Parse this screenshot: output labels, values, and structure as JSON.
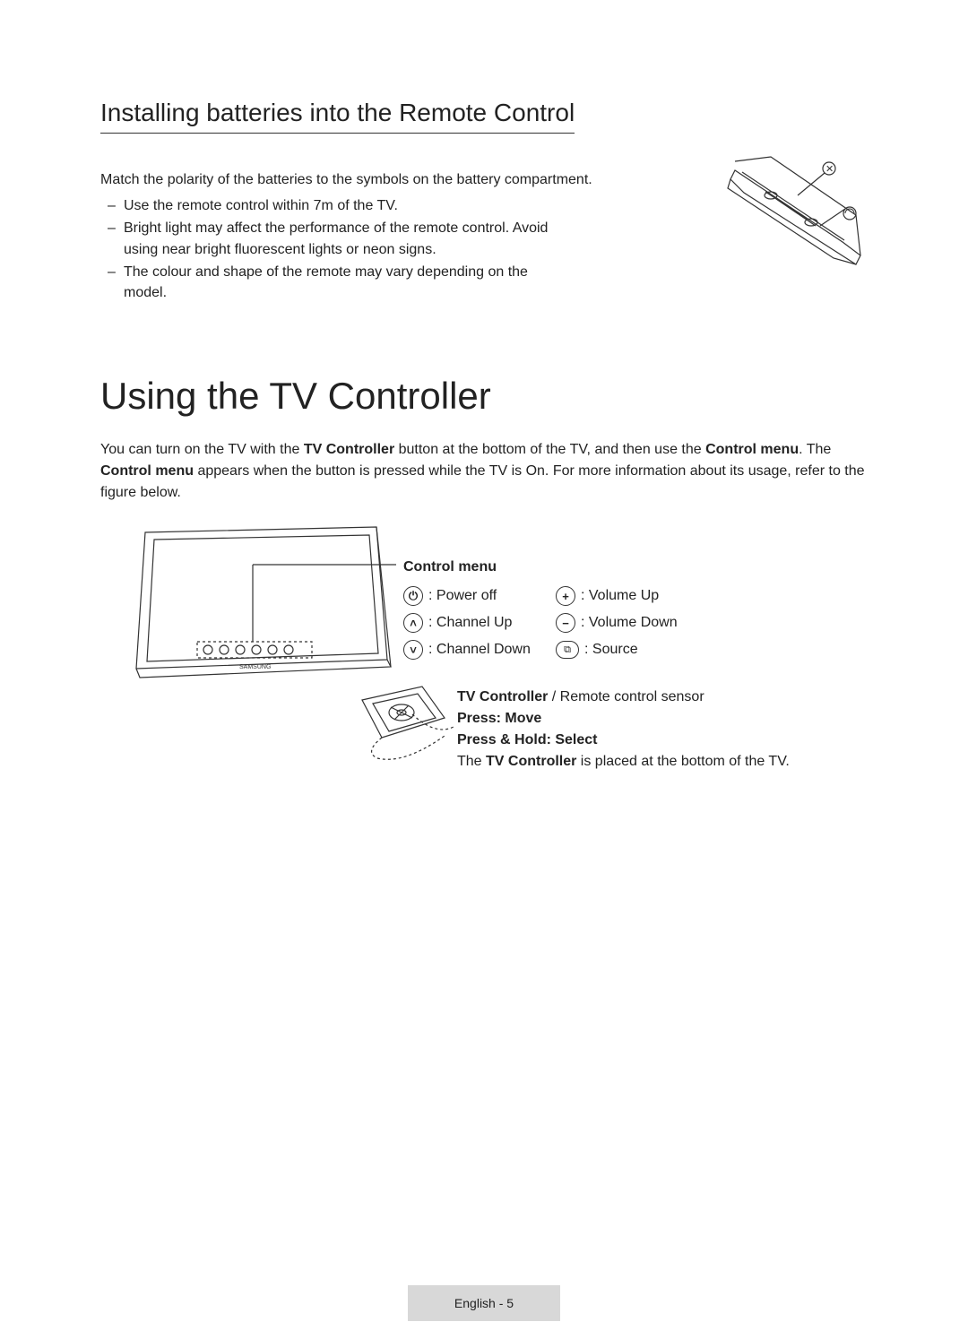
{
  "section1": {
    "heading": "Installing batteries into the Remote Control",
    "intro": "Match the polarity of the batteries to the symbols on the battery compartment.",
    "bullets": [
      "Use the remote control within 7m of the TV.",
      "Bright light may affect the performance of the remote control. Avoid using near bright fluorescent lights or neon signs.",
      "The colour and shape of the remote may vary depending on the model."
    ]
  },
  "section2": {
    "heading": "Using the TV Controller",
    "para_parts": {
      "t1": "You can turn on the TV with the ",
      "b1": "TV Controller",
      "t2": " button at the bottom of the TV, and then use the ",
      "b2": "Control menu",
      "t3": ". The ",
      "b3": "Control menu",
      "t4": " appears when the button is pressed while the TV is On. For more information about its usage, refer to the figure below."
    }
  },
  "control_menu": {
    "title": "Control menu",
    "items": [
      {
        "icon": "⏻",
        "label": ": Power off"
      },
      {
        "icon": "+",
        "label": ": Volume Up"
      },
      {
        "icon": "˄",
        "label": ": Channel Up"
      },
      {
        "icon": "−",
        "label": ": Volume Down"
      },
      {
        "icon": "˅",
        "label": ": Channel Down"
      },
      {
        "icon": "⧉",
        "label": ": Source",
        "rounded": true
      }
    ]
  },
  "controller_info": {
    "line1_bold": "TV Controller",
    "line1_rest": " / Remote control sensor",
    "line2": "Press: Move",
    "line3": "Press & Hold: Select",
    "line4_t1": "The ",
    "line4_b": "TV Controller",
    "line4_t2": " is placed at the bottom of the TV."
  },
  "footer": "English - 5",
  "colors": {
    "text": "#222222",
    "border": "#333333",
    "footer_bg": "#d8d8d8"
  }
}
